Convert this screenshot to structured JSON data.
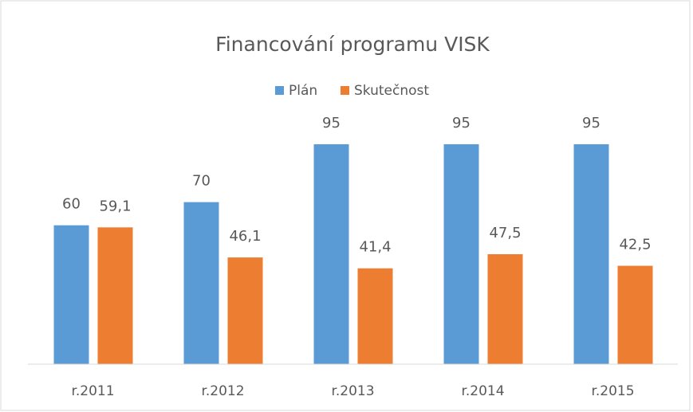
{
  "chart_data": {
    "type": "bar",
    "title": "Financování programu VISK",
    "categories": [
      "r.2011",
      "r.2012",
      "r.2013",
      "r.2014",
      "r.2015"
    ],
    "series": [
      {
        "name": "Plán",
        "color": "#5b9bd5",
        "values": [
          60,
          70,
          95,
          95,
          95
        ],
        "value_labels": [
          "60",
          "70",
          "95",
          "95",
          "95"
        ]
      },
      {
        "name": "Skutečnost",
        "color": "#ed7d31",
        "values": [
          59.1,
          46.1,
          41.4,
          47.5,
          42.5
        ],
        "value_labels": [
          "59,1",
          "46,1",
          "41,4",
          "47,5",
          "42,5"
        ]
      }
    ],
    "ylim": [
      0,
      100
    ],
    "legend": "top"
  }
}
